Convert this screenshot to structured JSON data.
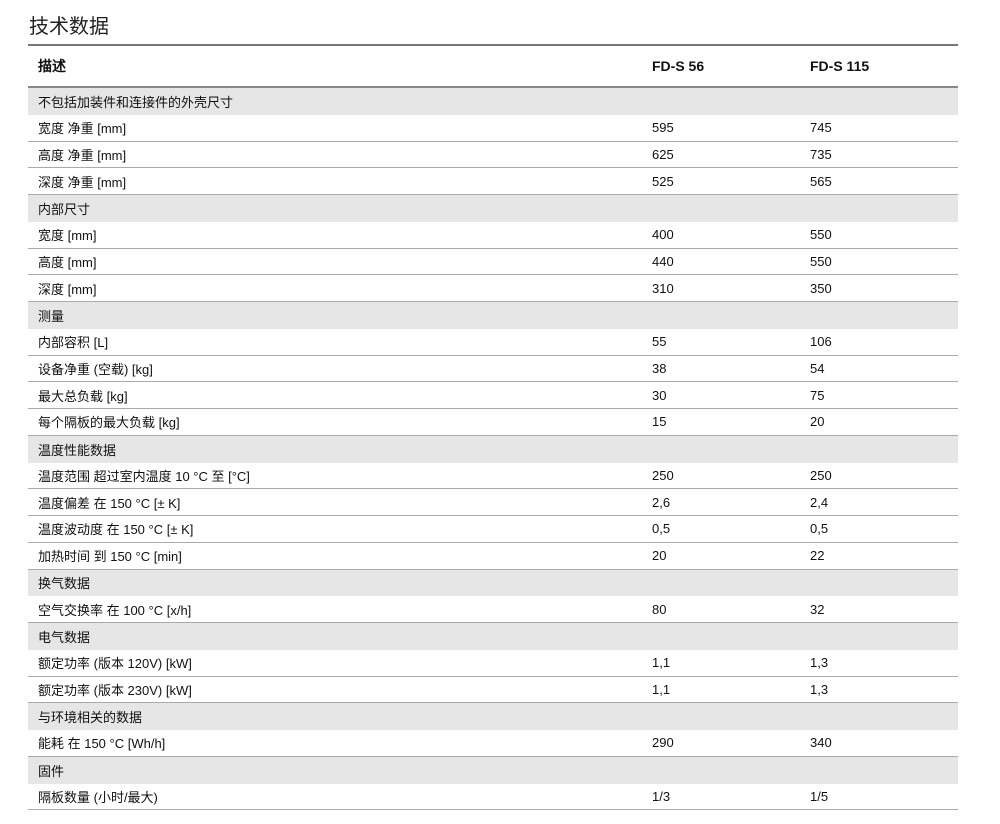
{
  "title": "技术数据",
  "header": [
    "描述",
    "FD-S 56",
    "FD-S 115"
  ],
  "rows": [
    {
      "type": "group",
      "label": "不包括加装件和连接件的外壳尺寸"
    },
    {
      "type": "item",
      "label": "宽度 净重 [mm]",
      "a": "595",
      "b": "745"
    },
    {
      "type": "item",
      "label": "高度 净重 [mm]",
      "a": "625",
      "b": "735"
    },
    {
      "type": "item",
      "label": "深度 净重 [mm]",
      "a": "525",
      "b": "565"
    },
    {
      "type": "group",
      "label": "内部尺寸"
    },
    {
      "type": "item",
      "label": "宽度 [mm]",
      "a": "400",
      "b": "550"
    },
    {
      "type": "item",
      "label": "高度 [mm]",
      "a": "440",
      "b": "550"
    },
    {
      "type": "item",
      "label": "深度 [mm]",
      "a": "310",
      "b": "350"
    },
    {
      "type": "group",
      "label": "测量"
    },
    {
      "type": "item",
      "label": "内部容积 [L]",
      "a": "55",
      "b": "106"
    },
    {
      "type": "item",
      "label": "设备净重 (空载) [kg]",
      "a": "38",
      "b": "54"
    },
    {
      "type": "item",
      "label": "最大总负载 [kg]",
      "a": "30",
      "b": "75"
    },
    {
      "type": "item",
      "label": "每个隔板的最大负载 [kg]",
      "a": "15",
      "b": "20"
    },
    {
      "type": "group",
      "label": "温度性能数据"
    },
    {
      "type": "item",
      "label": "温度范围 超过室内温度 10 °C 至 [°C]",
      "a": "250",
      "b": "250"
    },
    {
      "type": "item",
      "label": "温度偏差 在 150 °C [± K]",
      "a": "2,6",
      "b": "2,4"
    },
    {
      "type": "item",
      "label": "温度波动度 在 150 °C [± K]",
      "a": "0,5",
      "b": "0,5"
    },
    {
      "type": "item",
      "label": "加热时间 到 150 °C [min]",
      "a": "20",
      "b": "22"
    },
    {
      "type": "group",
      "label": "换气数据"
    },
    {
      "type": "item",
      "label": "空气交换率 在 100 °C [x/h]",
      "a": "80",
      "b": "32"
    },
    {
      "type": "group",
      "label": "电气数据"
    },
    {
      "type": "item",
      "label": "额定功率 (版本 120V) [kW]",
      "a": "1,1",
      "b": "1,3"
    },
    {
      "type": "item",
      "label": "额定功率 (版本 230V) [kW]",
      "a": "1,1",
      "b": "1,3"
    },
    {
      "type": "group",
      "label": "与环境相关的数据"
    },
    {
      "type": "item",
      "label": "能耗 在 150 °C [Wh/h]",
      "a": "290",
      "b": "340"
    },
    {
      "type": "group",
      "label": "固件"
    },
    {
      "type": "item",
      "label": "隔板数量 (小时/最大)",
      "a": "1/3",
      "b": "1/5"
    }
  ]
}
